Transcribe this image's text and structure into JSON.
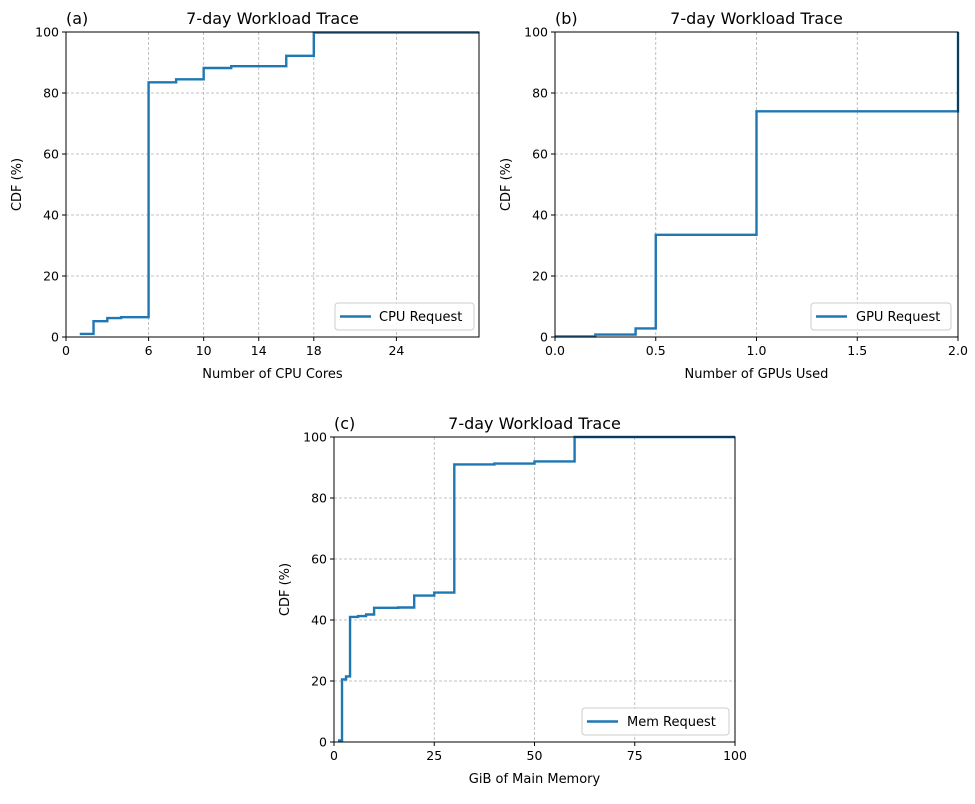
{
  "series_color": "#1f77b4",
  "chart_data": [
    {
      "id": "a",
      "type": "line",
      "step": "post",
      "panel_label": "(a)",
      "title": "7-day Workload Trace",
      "xlabel": "Number of CPU Cores",
      "ylabel": "CDF (%)",
      "xlim": [
        0,
        30
      ],
      "ylim": [
        0,
        100
      ],
      "xticks": [
        0,
        6,
        10,
        14,
        18,
        24
      ],
      "xtick_labels": [
        "0",
        "6",
        "10",
        "14",
        "18",
        "24"
      ],
      "yticks": [
        0,
        20,
        40,
        60,
        80,
        100
      ],
      "ytick_labels": [
        "0",
        "20",
        "40",
        "60",
        "80",
        "100"
      ],
      "grid": true,
      "legend_position": "lower-right",
      "series": [
        {
          "name": "CPU Request",
          "x": [
            1,
            2,
            3,
            4,
            6,
            8,
            10,
            12,
            16,
            18,
            30
          ],
          "y": [
            1,
            5.2,
            6.2,
            6.5,
            83.5,
            84.5,
            88.2,
            88.8,
            92.2,
            99.8,
            99.8
          ]
        }
      ]
    },
    {
      "id": "b",
      "type": "line",
      "step": "post",
      "panel_label": "(b)",
      "title": "7-day Workload Trace",
      "xlabel": "Number of GPUs Used",
      "ylabel": "CDF (%)",
      "xlim": [
        0,
        2
      ],
      "ylim": [
        0,
        100
      ],
      "xticks": [
        0,
        0.5,
        1,
        1.5,
        2
      ],
      "xtick_labels": [
        "0.0",
        "0.5",
        "1.0",
        "1.5",
        "2.0"
      ],
      "yticks": [
        0,
        20,
        40,
        60,
        80,
        100
      ],
      "ytick_labels": [
        "0",
        "20",
        "40",
        "60",
        "80",
        "100"
      ],
      "grid": true,
      "legend_position": "lower-right",
      "series": [
        {
          "name": "GPU Request",
          "x": [
            0,
            0.2,
            0.4,
            0.5,
            1.0,
            2.0
          ],
          "y": [
            0.2,
            0.8,
            2.8,
            33.5,
            74,
            100
          ]
        }
      ]
    },
    {
      "id": "c",
      "type": "line",
      "step": "post",
      "panel_label": "(c)",
      "title": "7-day Workload Trace",
      "xlabel": "GiB of Main Memory",
      "ylabel": "CDF (%)",
      "xlim": [
        0,
        100
      ],
      "ylim": [
        0,
        100
      ],
      "xticks": [
        0,
        25,
        50,
        75,
        100
      ],
      "xtick_labels": [
        "0",
        "25",
        "50",
        "75",
        "100"
      ],
      "yticks": [
        0,
        20,
        40,
        60,
        80,
        100
      ],
      "ytick_labels": [
        "0",
        "20",
        "40",
        "60",
        "80",
        "100"
      ],
      "grid": true,
      "legend_position": "lower-right",
      "series": [
        {
          "name": "Mem Request",
          "x": [
            1,
            2,
            3,
            4,
            6,
            8,
            10,
            16,
            20,
            25,
            30,
            40,
            50,
            60,
            100
          ],
          "y": [
            0.5,
            20.5,
            21.5,
            41,
            41.3,
            41.8,
            44,
            44.1,
            48,
            49,
            91,
            91.3,
            92,
            100,
            100
          ]
        }
      ]
    }
  ]
}
